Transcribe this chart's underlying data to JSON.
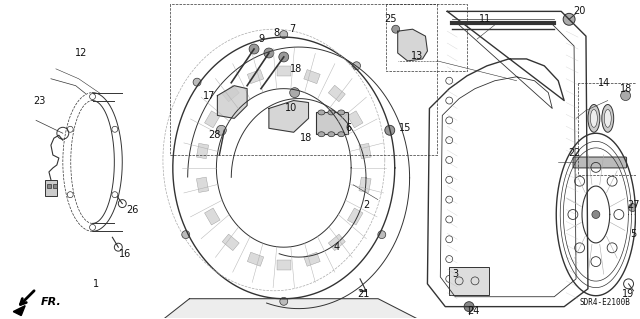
{
  "background_color": "#ffffff",
  "diagram_code": "SDR4-E2100B",
  "line_color": "#333333",
  "gray_color": "#888888",
  "font_size": 7,
  "label_color": "#111111"
}
